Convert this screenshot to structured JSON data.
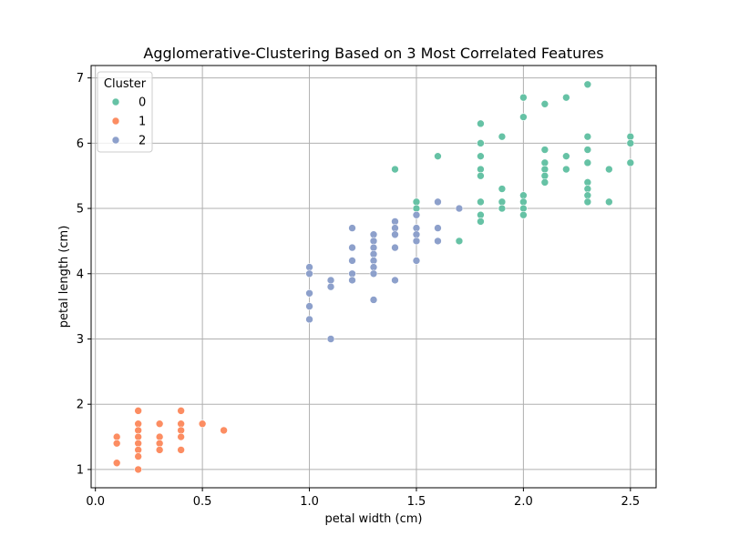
{
  "chart_data": {
    "type": "scatter",
    "title": "Agglomerative-Clustering Based on 3 Most Correlated Features",
    "xlabel": "petal width (cm)",
    "ylabel": "petal length (cm)",
    "xlim": [
      -0.02,
      2.62
    ],
    "ylim": [
      0.72,
      7.19
    ],
    "xticks": [
      0.0,
      0.5,
      1.0,
      1.5,
      2.0,
      2.5
    ],
    "xtick_labels": [
      "0.0",
      "0.5",
      "1.0",
      "1.5",
      "2.0",
      "2.5"
    ],
    "yticks": [
      1,
      2,
      3,
      4,
      5,
      6,
      7
    ],
    "ytick_labels": [
      "1",
      "2",
      "3",
      "4",
      "5",
      "6",
      "7"
    ],
    "grid": true,
    "legend": {
      "title": "Cluster",
      "position": "top-left"
    },
    "series": [
      {
        "name": "0",
        "color": "#66c2a5",
        "points": [
          [
            1.4,
            5.6
          ],
          [
            1.5,
            5.1
          ],
          [
            1.5,
            5.0
          ],
          [
            1.6,
            5.8
          ],
          [
            1.7,
            4.5
          ],
          [
            1.8,
            6.3
          ],
          [
            1.8,
            6.0
          ],
          [
            1.8,
            5.8
          ],
          [
            1.8,
            5.6
          ],
          [
            1.8,
            5.5
          ],
          [
            1.8,
            5.1
          ],
          [
            1.8,
            4.9
          ],
          [
            1.8,
            4.8
          ],
          [
            1.9,
            6.1
          ],
          [
            1.9,
            5.3
          ],
          [
            1.9,
            5.1
          ],
          [
            1.9,
            5.0
          ],
          [
            2.0,
            6.7
          ],
          [
            2.0,
            6.4
          ],
          [
            2.0,
            5.2
          ],
          [
            2.0,
            5.1
          ],
          [
            2.0,
            5.0
          ],
          [
            2.0,
            4.9
          ],
          [
            2.1,
            6.6
          ],
          [
            2.1,
            5.9
          ],
          [
            2.1,
            5.7
          ],
          [
            2.1,
            5.6
          ],
          [
            2.1,
            5.5
          ],
          [
            2.1,
            5.4
          ],
          [
            2.2,
            6.7
          ],
          [
            2.2,
            5.8
          ],
          [
            2.2,
            5.6
          ],
          [
            2.3,
            6.9
          ],
          [
            2.3,
            6.1
          ],
          [
            2.3,
            5.9
          ],
          [
            2.3,
            5.7
          ],
          [
            2.3,
            5.4
          ],
          [
            2.3,
            5.3
          ],
          [
            2.3,
            5.2
          ],
          [
            2.3,
            5.1
          ],
          [
            2.4,
            5.6
          ],
          [
            2.4,
            5.1
          ],
          [
            2.5,
            6.1
          ],
          [
            2.5,
            6.0
          ],
          [
            2.5,
            5.7
          ]
        ]
      },
      {
        "name": "1",
        "color": "#fc8d62",
        "points": [
          [
            0.1,
            1.5
          ],
          [
            0.1,
            1.4
          ],
          [
            0.1,
            1.1
          ],
          [
            0.2,
            1.9
          ],
          [
            0.2,
            1.7
          ],
          [
            0.2,
            1.6
          ],
          [
            0.2,
            1.5
          ],
          [
            0.2,
            1.4
          ],
          [
            0.2,
            1.3
          ],
          [
            0.2,
            1.2
          ],
          [
            0.2,
            1.0
          ],
          [
            0.3,
            1.7
          ],
          [
            0.3,
            1.5
          ],
          [
            0.3,
            1.4
          ],
          [
            0.3,
            1.3
          ],
          [
            0.4,
            1.9
          ],
          [
            0.4,
            1.7
          ],
          [
            0.4,
            1.6
          ],
          [
            0.4,
            1.5
          ],
          [
            0.4,
            1.3
          ],
          [
            0.5,
            1.7
          ],
          [
            0.6,
            1.6
          ]
        ]
      },
      {
        "name": "2",
        "color": "#8da0cb",
        "points": [
          [
            1.0,
            4.1
          ],
          [
            1.0,
            4.0
          ],
          [
            1.0,
            3.7
          ],
          [
            1.0,
            3.5
          ],
          [
            1.0,
            3.3
          ],
          [
            1.1,
            3.9
          ],
          [
            1.1,
            3.8
          ],
          [
            1.1,
            3.0
          ],
          [
            1.2,
            4.7
          ],
          [
            1.2,
            4.4
          ],
          [
            1.2,
            4.2
          ],
          [
            1.2,
            4.0
          ],
          [
            1.2,
            3.9
          ],
          [
            1.3,
            4.6
          ],
          [
            1.3,
            4.5
          ],
          [
            1.3,
            4.4
          ],
          [
            1.3,
            4.3
          ],
          [
            1.3,
            4.2
          ],
          [
            1.3,
            4.1
          ],
          [
            1.3,
            4.0
          ],
          [
            1.3,
            3.6
          ],
          [
            1.4,
            4.8
          ],
          [
            1.4,
            4.7
          ],
          [
            1.4,
            4.6
          ],
          [
            1.4,
            4.4
          ],
          [
            1.4,
            3.9
          ],
          [
            1.5,
            4.9
          ],
          [
            1.5,
            4.7
          ],
          [
            1.5,
            4.6
          ],
          [
            1.5,
            4.5
          ],
          [
            1.5,
            4.2
          ],
          [
            1.6,
            5.1
          ],
          [
            1.6,
            4.7
          ],
          [
            1.6,
            4.5
          ],
          [
            1.7,
            5.0
          ]
        ]
      }
    ]
  }
}
